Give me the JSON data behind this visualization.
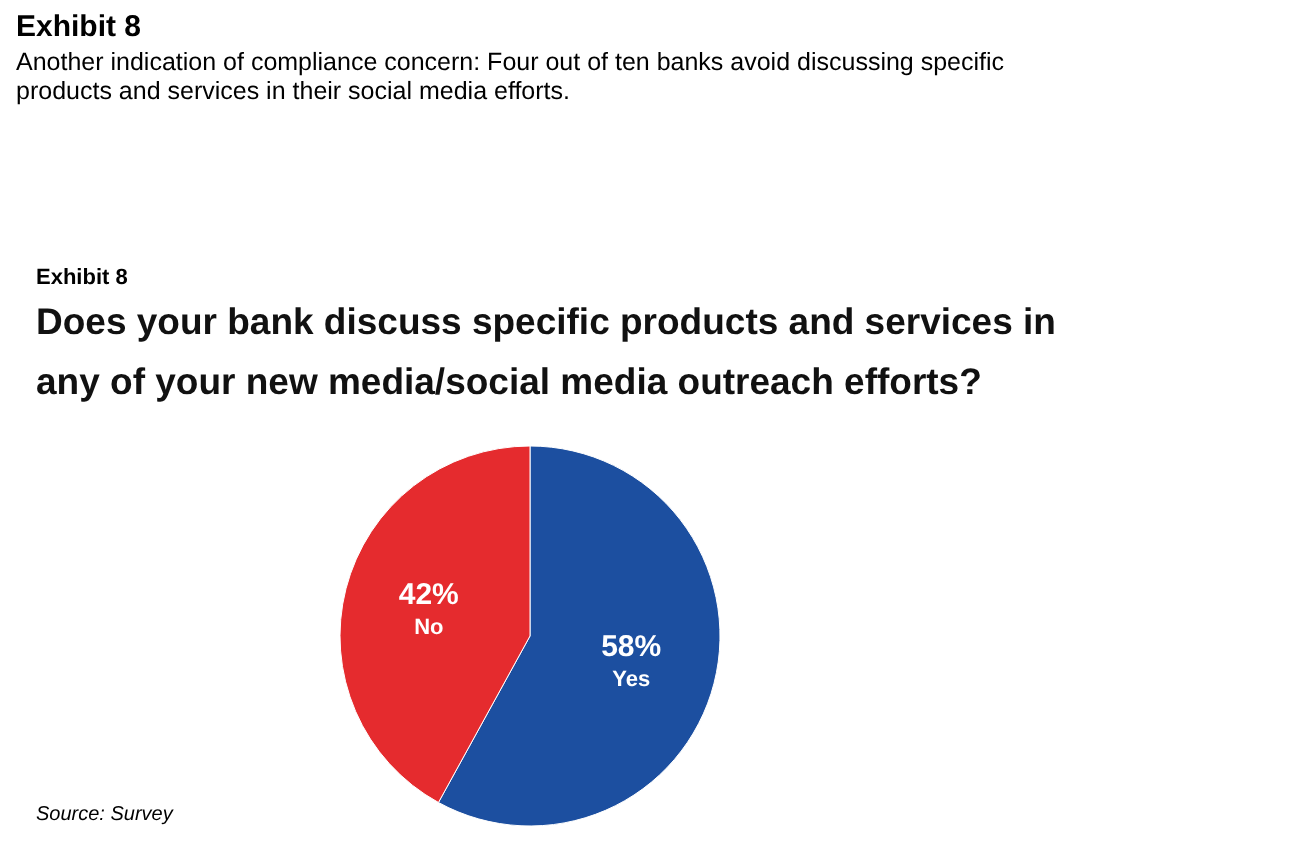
{
  "chart_data": {
    "type": "pie",
    "title": "Does your bank discuss specific products and services in any of your new media/social media outreach efforts?",
    "annotations": [
      "Exhibit 8",
      "Another indication of compliance concern: Four out of ten banks avoid discussing specific products and services in their social media efforts.",
      "Exhibit 8",
      "Source: Survey"
    ],
    "categories": [
      "Yes",
      "No"
    ],
    "values": [
      58,
      42
    ],
    "colors": [
      "#1c4fa0",
      "#e52b2e"
    ],
    "data_labels": true,
    "value_labels": [
      "58%",
      "42%"
    ]
  }
}
